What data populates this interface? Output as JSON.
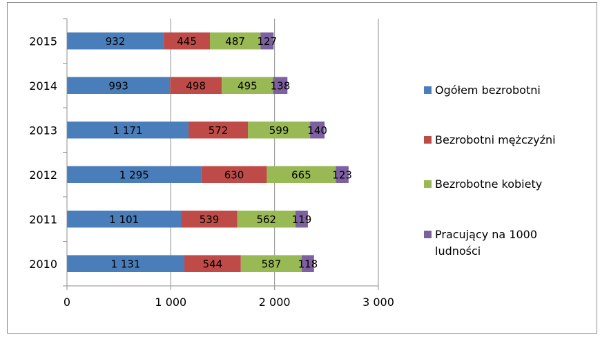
{
  "chart_data": {
    "type": "bar",
    "orientation": "horizontal",
    "stacked": true,
    "categories": [
      "2010",
      "2011",
      "2012",
      "2013",
      "2014",
      "2015"
    ],
    "series": [
      {
        "name": "Ogółem bezrobotni",
        "values": [
          1131,
          1101,
          1295,
          1171,
          993,
          932
        ],
        "labels": [
          "1 131",
          "1 101",
          "1 295",
          "1 171",
          "993",
          "932"
        ],
        "color": "#4a7ebb"
      },
      {
        "name": "Bezrobotni mężczyźni",
        "values": [
          544,
          539,
          630,
          572,
          498,
          445
        ],
        "labels": [
          "544",
          "539",
          "630",
          "572",
          "498",
          "445"
        ],
        "color": "#be4b48"
      },
      {
        "name": "Bezrobotne kobiety",
        "values": [
          587,
          562,
          665,
          599,
          495,
          487
        ],
        "labels": [
          "587",
          "562",
          "665",
          "599",
          "495",
          "487"
        ],
        "color": "#98b954"
      },
      {
        "name": "Pracujący na 1000 ludności",
        "name_lines": [
          "Pracujący na 1000",
          "ludności"
        ],
        "values": [
          118,
          119,
          123,
          140,
          138,
          127
        ],
        "labels": [
          "118",
          "119",
          "123",
          "140",
          "138",
          "127"
        ],
        "color": "#7d60a0"
      }
    ],
    "xlim": [
      0,
      3000
    ],
    "xticks": [
      0,
      1000,
      2000,
      3000
    ],
    "xtick_labels": [
      "0",
      "1 000",
      "2 000",
      "3 000"
    ],
    "grid": "vertical",
    "legend": "right",
    "title": "",
    "xlabel": "",
    "ylabel": ""
  }
}
